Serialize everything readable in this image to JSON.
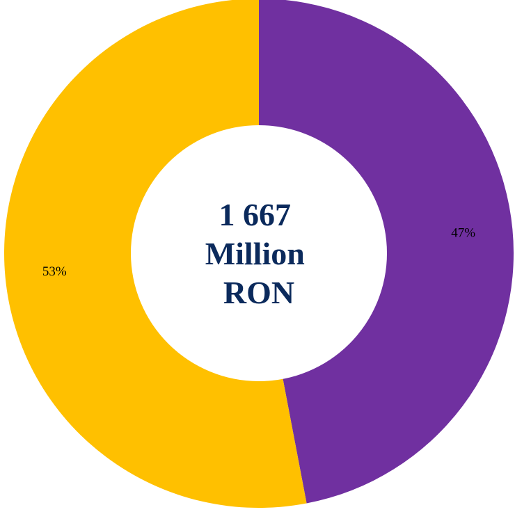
{
  "chart_data": {
    "type": "pie",
    "variant": "donut",
    "center_label": [
      "1 667",
      "Million",
      "RON"
    ],
    "slices": [
      {
        "value": 47,
        "label": "47%",
        "color": "#7030a0"
      },
      {
        "value": 53,
        "label": "53%",
        "color": "#ffc000"
      }
    ],
    "start": "top",
    "direction": "clockwise",
    "legend": "none"
  }
}
